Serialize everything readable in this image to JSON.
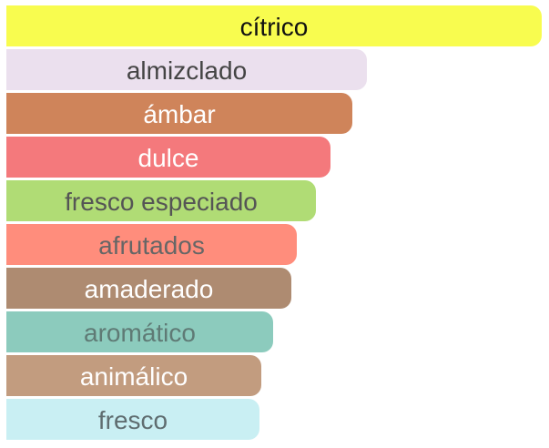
{
  "chart_data": {
    "type": "bar",
    "orientation": "horizontal",
    "categories": [
      "cítrico",
      "almizclado",
      "ámbar",
      "dulce",
      "fresco especiado",
      "afrutados",
      "amaderado",
      "aromático",
      "animálico",
      "fresco"
    ],
    "values": [
      100,
      67.3,
      64.7,
      60.6,
      57.9,
      54.2,
      53.3,
      49.8,
      47.6,
      47.3
    ],
    "colors": [
      "#f8fc4f",
      "#ebe0ee",
      "#cf845a",
      "#f4797c",
      "#b0dc75",
      "#ff8d7c",
      "#ae8b71",
      "#8ccbbd",
      "#c29c7f",
      "#c9eff3"
    ],
    "label_colors": [
      "#111111",
      "#444444",
      "#ffffff",
      "#ffffff",
      "#555555",
      "#666666",
      "#ffffff",
      "#5f7a75",
      "#ffffff",
      "#5f6d70"
    ],
    "title": "",
    "xlabel": "",
    "ylabel": "",
    "grid": false,
    "legend": "none"
  }
}
